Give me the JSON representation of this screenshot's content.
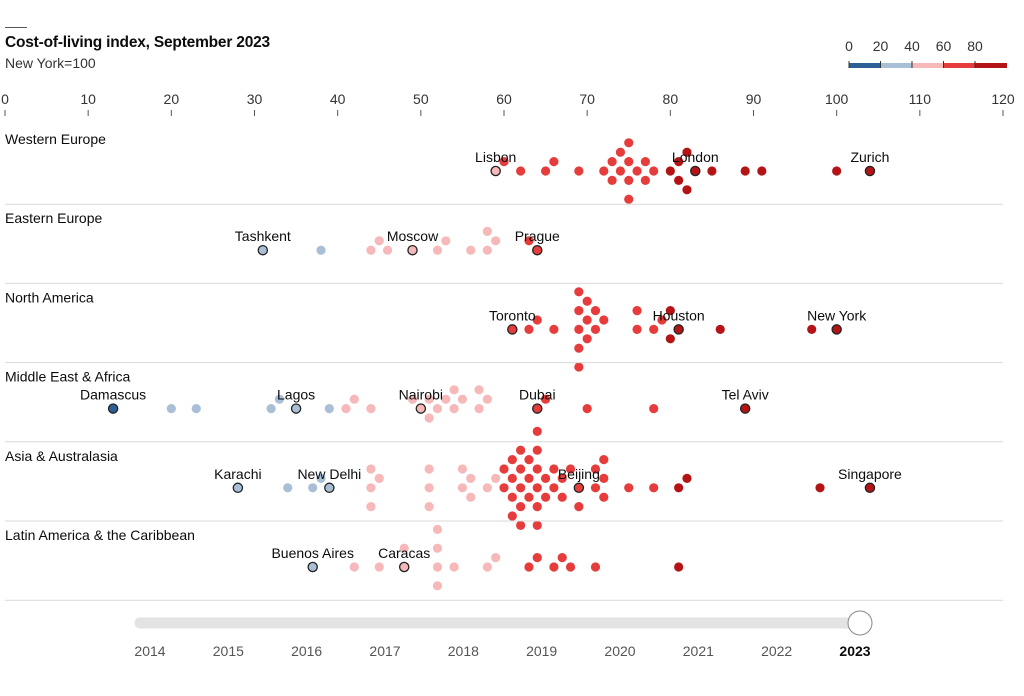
{
  "header": {
    "title": "Cost-of-living index, September 2023",
    "subtitle": "New York=100"
  },
  "chart_data": {
    "type": "scatter",
    "subtype": "beeswarm",
    "title": "Cost-of-living index, September 2023",
    "subtitle": "New York=100",
    "xlabel": "",
    "ylabel": "",
    "xlim": [
      0,
      120
    ],
    "x_ticks": [
      0,
      10,
      20,
      30,
      40,
      50,
      60,
      70,
      80,
      90,
      100,
      110,
      120
    ],
    "grid": false,
    "legend": {
      "placement": "top-right",
      "type": "color-scale",
      "breaks": [
        0,
        20,
        40,
        60,
        80
      ],
      "labels": [
        "0",
        "20",
        "40",
        "60",
        "80"
      ],
      "colors": [
        "#2e5e96",
        "#a9bfd6",
        "#f6b8b8",
        "#e63c3c",
        "#b51416"
      ]
    },
    "colors": {
      "bin_0_20": "#2e5e96",
      "bin_20_40": "#a9bfd6",
      "bin_40_60": "#f6b8b8",
      "bin_60_80": "#e63c3c",
      "bin_80_plus": "#b51416",
      "highlight_stroke": "#222222",
      "divider": "#d9d9d9"
    },
    "regions": [
      {
        "name": "Western Europe",
        "labelled": [
          {
            "city": "Lisbon",
            "value": 59
          },
          {
            "city": "London",
            "value": 83
          },
          {
            "city": "Zurich",
            "value": 104
          }
        ],
        "values": [
          60,
          62,
          65,
          66,
          69,
          72,
          73,
          73,
          74,
          74,
          75,
          75,
          75,
          75,
          76,
          77,
          77,
          78,
          80,
          81,
          81,
          82,
          82,
          85,
          89,
          91,
          100
        ]
      },
      {
        "name": "Eastern Europe",
        "labelled": [
          {
            "city": "Tashkent",
            "value": 31
          },
          {
            "city": "Moscow",
            "value": 49
          },
          {
            "city": "Prague",
            "value": 64
          }
        ],
        "values": [
          38,
          44,
          45,
          46,
          52,
          53,
          56,
          58,
          58,
          59,
          63
        ]
      },
      {
        "name": "North America",
        "labelled": [
          {
            "city": "Toronto",
            "value": 61
          },
          {
            "city": "Houston",
            "value": 81
          },
          {
            "city": "New York",
            "value": 100
          }
        ],
        "values": [
          63,
          64,
          66,
          69,
          69,
          69,
          69,
          69,
          70,
          70,
          70,
          71,
          71,
          72,
          76,
          76,
          78,
          79,
          80,
          80,
          86,
          97
        ]
      },
      {
        "name": "Middle East & Africa",
        "labelled": [
          {
            "city": "Damascus",
            "value": 13
          },
          {
            "city": "Lagos",
            "value": 35
          },
          {
            "city": "Nairobi",
            "value": 50
          },
          {
            "city": "Dubai",
            "value": 64
          },
          {
            "city": "Tel Aviv",
            "value": 89
          }
        ],
        "values": [
          20,
          23,
          32,
          33,
          39,
          41,
          42,
          44,
          49,
          51,
          51,
          52,
          53,
          54,
          54,
          55,
          57,
          57,
          58,
          65,
          70,
          78
        ]
      },
      {
        "name": "Asia & Australasia",
        "labelled": [
          {
            "city": "Karachi",
            "value": 28
          },
          {
            "city": "New Delhi",
            "value": 39
          },
          {
            "city": "Beijing",
            "value": 69
          },
          {
            "city": "Singapore",
            "value": 104
          }
        ],
        "values": [
          34,
          37,
          38,
          44,
          44,
          44,
          45,
          51,
          51,
          51,
          55,
          55,
          56,
          56,
          58,
          59,
          60,
          60,
          61,
          61,
          61,
          61,
          62,
          62,
          62,
          62,
          62,
          63,
          63,
          63,
          64,
          64,
          64,
          64,
          64,
          64,
          65,
          65,
          66,
          66,
          67,
          67,
          68,
          69,
          71,
          71,
          72,
          72,
          72,
          75,
          78,
          81,
          82,
          98
        ]
      },
      {
        "name": "Latin America & the Caribbean",
        "labelled": [
          {
            "city": "Buenos Aires",
            "value": 37
          },
          {
            "city": "Caracas",
            "value": 48
          }
        ],
        "values": [
          42,
          45,
          48,
          52,
          52,
          52,
          52,
          54,
          58,
          59,
          63,
          64,
          66,
          67,
          68,
          71,
          81
        ]
      }
    ],
    "time_slider": {
      "years": [
        "2014",
        "2015",
        "2016",
        "2017",
        "2018",
        "2019",
        "2020",
        "2021",
        "2022",
        "2023"
      ],
      "selected": "2023"
    }
  }
}
